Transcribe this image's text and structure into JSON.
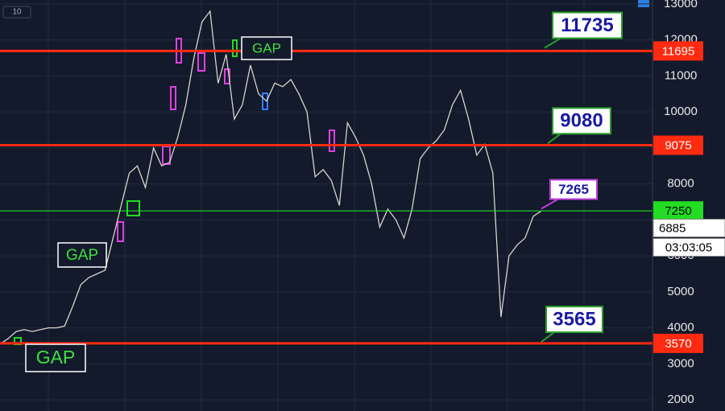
{
  "chart_data": {
    "type": "line",
    "interval": "10",
    "categories": [
      null,
      null,
      null,
      null,
      null,
      null,
      null,
      null,
      null,
      null,
      null,
      null,
      null,
      null,
      null,
      null,
      null,
      null,
      null,
      null,
      null,
      null,
      null,
      null,
      null,
      null,
      null,
      null,
      null,
      null,
      null,
      null,
      null,
      null,
      null,
      null,
      null,
      null,
      null,
      null,
      null,
      null,
      null,
      null,
      null,
      null,
      null,
      null,
      null,
      null,
      null,
      null,
      null,
      null,
      null,
      null,
      null,
      null,
      null,
      null,
      null,
      null,
      null,
      null,
      null,
      null,
      null,
      null
    ],
    "values": [
      3550,
      3700,
      3900,
      3950,
      3900,
      3950,
      4000,
      4000,
      4050,
      4600,
      5200,
      5400,
      5500,
      5600,
      6500,
      7400,
      8300,
      8500,
      7900,
      9000,
      8500,
      8600,
      9300,
      10200,
      11500,
      12500,
      12800,
      10800,
      11600,
      9800,
      10200,
      11300,
      10500,
      10300,
      10800,
      10700,
      10900,
      10500,
      10000,
      8200,
      8400,
      8100,
      7400,
      9700,
      9300,
      8800,
      8000,
      6800,
      7300,
      7000,
      6500,
      7300,
      8700,
      9000,
      9200,
      9500,
      10200,
      10600,
      9800,
      8800,
      9100,
      8300,
      4300,
      6000,
      6300,
      6500,
      7100,
      7250
    ],
    "color": "#d9d4cc",
    "ylim": [
      1690,
      13110
    ],
    "yticks": [
      2000,
      3000,
      4000,
      5000,
      6000,
      7000,
      8000,
      9000,
      10000,
      11000,
      12000,
      13000
    ],
    "grid": true,
    "levels": [
      {
        "value": 11695,
        "color": "#ff2a10"
      },
      {
        "value": 9075,
        "color": "#ff2a10"
      },
      {
        "value": 3570,
        "color": "#ff2a10"
      },
      {
        "value": 7250,
        "color": "#22dd22"
      }
    ],
    "last_price": 6885,
    "countdown": "03:03:05",
    "annotations": [
      11735,
      9080,
      7265,
      3565
    ],
    "gaps": [
      "GAP",
      "GAP",
      "GAP"
    ]
  }
}
